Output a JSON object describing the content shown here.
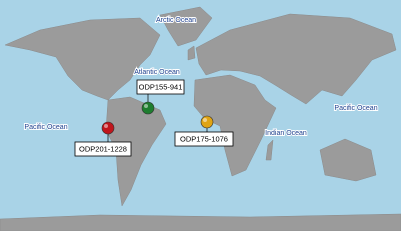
{
  "oceans": [
    {
      "label": "Arctic Ocean"
    },
    {
      "label": "Atlantic Ocean"
    },
    {
      "label": "Pacific Ocean"
    },
    {
      "label": "Pacific Ocean"
    },
    {
      "label": "Indian Ocean"
    }
  ],
  "sites": [
    {
      "label": "ODP155-941",
      "color": "#1e7d2f"
    },
    {
      "label": "ODP201-1228",
      "color": "#c0161c"
    },
    {
      "label": "ODP175-1076",
      "color": "#e0a414"
    }
  ]
}
